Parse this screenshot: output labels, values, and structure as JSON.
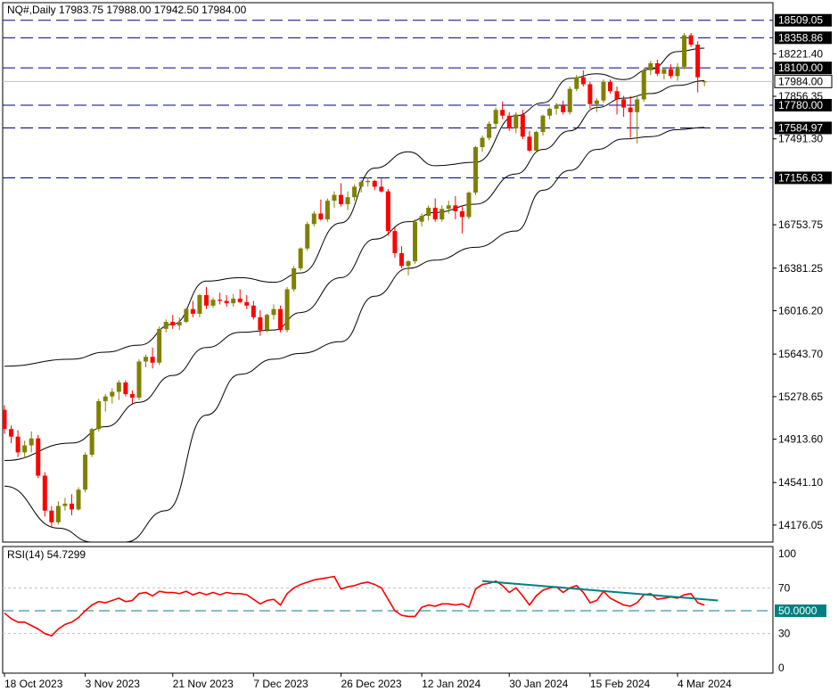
{
  "header": {
    "symbol": "NQ#,Daily",
    "ohlc": "17983.75 17988.00 17942.50 17984.00"
  },
  "rsi_header": {
    "label": "RSI(14) 54.7299"
  },
  "colors": {
    "bull": "#808000",
    "bear": "#ff0000",
    "band": "#000000",
    "level": "#000080",
    "rsi": "#ff0000",
    "trend": "#008080",
    "marker_bg": "#000000",
    "rsi_marker_bg": "#008080"
  },
  "chart_data": [
    {
      "type": "candlestick",
      "title": "NQ#,Daily",
      "x_ticks": [
        "18 Oct 2023",
        "3 Nov 2023",
        "21 Nov 2023",
        "7 Dec 2023",
        "26 Dec 2023",
        "12 Jan 2024",
        "30 Jan 2024",
        "15 Feb 2024",
        "4 Mar 2024"
      ],
      "y_ticks": [
        "18221.40",
        "17856.35",
        "17491.30",
        "16753.75",
        "16381.25",
        "16016.20",
        "15643.70",
        "15278.65",
        "14913.60",
        "14541.10",
        "14176.05"
      ],
      "ylim": [
        14030,
        18660
      ],
      "horizontal_levels": [
        18509.05,
        18358.86,
        18100.0,
        17780.0,
        17584.97,
        17156.63
      ],
      "level_labels": [
        "18509.05",
        "18358.86",
        "18100.00",
        "17780.00",
        "17584.97",
        "17156.63"
      ],
      "current_price": 17984.0,
      "current_price_label": "17984.00",
      "ohlc": [
        [
          15165,
          15205,
          14960,
          15000
        ],
        [
          15000,
          15030,
          14880,
          14935
        ],
        [
          14935,
          14990,
          14760,
          14800
        ],
        [
          14800,
          14900,
          14750,
          14860
        ],
        [
          14860,
          14980,
          14800,
          14920
        ],
        [
          14920,
          14950,
          14580,
          14600
        ],
        [
          14600,
          14630,
          14250,
          14300
        ],
        [
          14300,
          14340,
          14160,
          14200
        ],
        [
          14200,
          14380,
          14180,
          14340
        ],
        [
          14340,
          14410,
          14300,
          14360
        ],
        [
          14360,
          14440,
          14260,
          14310
        ],
        [
          14310,
          14500,
          14300,
          14480
        ],
        [
          14480,
          14800,
          14460,
          14780
        ],
        [
          14780,
          15010,
          14760,
          15000
        ],
        [
          15000,
          15260,
          14980,
          15240
        ],
        [
          15240,
          15300,
          15150,
          15280
        ],
        [
          15280,
          15350,
          15220,
          15320
        ],
        [
          15320,
          15420,
          15250,
          15400
        ],
        [
          15400,
          15420,
          15280,
          15300
        ],
        [
          15300,
          15330,
          15220,
          15270
        ],
        [
          15270,
          15600,
          15250,
          15580
        ],
        [
          15580,
          15640,
          15530,
          15620
        ],
        [
          15620,
          15700,
          15520,
          15570
        ],
        [
          15570,
          15880,
          15550,
          15860
        ],
        [
          15860,
          15940,
          15830,
          15920
        ],
        [
          15920,
          15980,
          15860,
          15890
        ],
        [
          15890,
          15960,
          15850,
          15920
        ],
        [
          15920,
          16040,
          15910,
          16030
        ],
        [
          16030,
          16100,
          15960,
          15990
        ],
        [
          15990,
          16160,
          15960,
          16150
        ],
        [
          16150,
          16220,
          16030,
          16060
        ],
        [
          16060,
          16130,
          16040,
          16110
        ],
        [
          16110,
          16170,
          16070,
          16100
        ],
        [
          16100,
          16150,
          16050,
          16080
        ],
        [
          16080,
          16160,
          16050,
          16120
        ],
        [
          16120,
          16200,
          16080,
          16090
        ],
        [
          16090,
          16150,
          16030,
          16060
        ],
        [
          16060,
          16100,
          15940,
          15960
        ],
        [
          15960,
          16020,
          15800,
          15850
        ],
        [
          15850,
          15990,
          15830,
          15980
        ],
        [
          15980,
          16070,
          15940,
          16030
        ],
        [
          16030,
          16060,
          15830,
          15850
        ],
        [
          15850,
          16220,
          15830,
          16200
        ],
        [
          16200,
          16400,
          16180,
          16380
        ],
        [
          16380,
          16560,
          16360,
          16550
        ],
        [
          16550,
          16780,
          16530,
          16760
        ],
        [
          16760,
          16870,
          16740,
          16850
        ],
        [
          16850,
          16970,
          16790,
          16800
        ],
        [
          16800,
          16980,
          16780,
          16960
        ],
        [
          16960,
          17040,
          16900,
          17010
        ],
        [
          17010,
          17110,
          16910,
          16930
        ],
        [
          16930,
          17040,
          16880,
          16990
        ],
        [
          16990,
          17100,
          16960,
          17080
        ],
        [
          17080,
          17140,
          17030,
          17120
        ],
        [
          17120,
          17160,
          17080,
          17130
        ],
        [
          17130,
          17140,
          17050,
          17080
        ],
        [
          17080,
          17150,
          17030,
          17040
        ],
        [
          17040,
          17060,
          16660,
          16700
        ],
        [
          16700,
          16730,
          16470,
          16510
        ],
        [
          16510,
          16570,
          16380,
          16400
        ],
        [
          16400,
          16450,
          16320,
          16440
        ],
        [
          16440,
          16800,
          16420,
          16780
        ],
        [
          16780,
          16850,
          16740,
          16830
        ],
        [
          16830,
          16920,
          16790,
          16900
        ],
        [
          16900,
          16980,
          16780,
          16800
        ],
        [
          16800,
          16920,
          16780,
          16890
        ],
        [
          16890,
          16960,
          16850,
          16920
        ],
        [
          16920,
          17000,
          16800,
          16870
        ],
        [
          16870,
          16920,
          16680,
          16820
        ],
        [
          16820,
          17040,
          16800,
          17030
        ],
        [
          17030,
          17430,
          17010,
          17420
        ],
        [
          17420,
          17520,
          17380,
          17500
        ],
        [
          17500,
          17640,
          17480,
          17620
        ],
        [
          17620,
          17760,
          17580,
          17740
        ],
        [
          17740,
          17810,
          17660,
          17690
        ],
        [
          17690,
          17720,
          17560,
          17580
        ],
        [
          17580,
          17720,
          17540,
          17700
        ],
        [
          17700,
          17740,
          17490,
          17510
        ],
        [
          17510,
          17560,
          17380,
          17390
        ],
        [
          17390,
          17560,
          17370,
          17550
        ],
        [
          17550,
          17700,
          17520,
          17690
        ],
        [
          17690,
          17760,
          17660,
          17750
        ],
        [
          17750,
          17800,
          17700,
          17780
        ],
        [
          17780,
          17820,
          17700,
          17720
        ],
        [
          17720,
          17940,
          17700,
          17920
        ],
        [
          17920,
          18040,
          17900,
          18020
        ],
        [
          18020,
          18080,
          17940,
          17960
        ],
        [
          17960,
          17980,
          17750,
          17790
        ],
        [
          17790,
          17840,
          17720,
          17820
        ],
        [
          17820,
          18000,
          17800,
          17980
        ],
        [
          17980,
          18000,
          17880,
          17900
        ],
        [
          17900,
          17940,
          17700,
          17830
        ],
        [
          17830,
          17860,
          17680,
          17760
        ],
        [
          17760,
          17860,
          17500,
          17720
        ],
        [
          17720,
          17860,
          17450,
          17830
        ],
        [
          17830,
          18100,
          17810,
          18080
        ],
        [
          18080,
          18160,
          18040,
          18140
        ],
        [
          18140,
          18170,
          18030,
          18050
        ],
        [
          18050,
          18100,
          18000,
          18090
        ],
        [
          18090,
          18130,
          18010,
          18030
        ],
        [
          18030,
          18140,
          17990,
          18110
        ],
        [
          18110,
          18400,
          18090,
          18380
        ],
        [
          18380,
          18400,
          18280,
          18300
        ],
        [
          18300,
          18330,
          17890,
          18020
        ],
        [
          17984,
          17988,
          17943,
          17984
        ]
      ],
      "bollinger_upper": [
        [
          0,
          15540
        ],
        [
          10,
          15600
        ],
        [
          15,
          15660
        ],
        [
          20,
          15720
        ],
        [
          25,
          15900
        ],
        [
          30,
          16270
        ],
        [
          35,
          16300
        ],
        [
          40,
          16260
        ],
        [
          44,
          16340
        ],
        [
          50,
          16770
        ],
        [
          55,
          17240
        ],
        [
          60,
          17380
        ],
        [
          64,
          17260
        ],
        [
          70,
          17290
        ],
        [
          76,
          17690
        ],
        [
          80,
          17800
        ],
        [
          84,
          18010
        ],
        [
          88,
          18050
        ],
        [
          92,
          18000
        ],
        [
          96,
          18090
        ],
        [
          100,
          18240
        ],
        [
          104,
          18270
        ]
      ],
      "bollinger_middle": [
        [
          0,
          14730
        ],
        [
          10,
          14880
        ],
        [
          15,
          15020
        ],
        [
          20,
          15230
        ],
        [
          25,
          15460
        ],
        [
          30,
          15700
        ],
        [
          35,
          15830
        ],
        [
          40,
          15850
        ],
        [
          44,
          16000
        ],
        [
          50,
          16300
        ],
        [
          55,
          16630
        ],
        [
          60,
          16780
        ],
        [
          64,
          16860
        ],
        [
          70,
          16930
        ],
        [
          76,
          17190
        ],
        [
          80,
          17400
        ],
        [
          84,
          17560
        ],
        [
          88,
          17760
        ],
        [
          92,
          17840
        ],
        [
          96,
          17880
        ],
        [
          100,
          17950
        ],
        [
          104,
          17990
        ]
      ],
      "bollinger_lower": [
        [
          0,
          14510
        ],
        [
          8,
          14150
        ],
        [
          13,
          14030
        ],
        [
          18,
          14030
        ],
        [
          24,
          14300
        ],
        [
          30,
          15120
        ],
        [
          35,
          15470
        ],
        [
          40,
          15600
        ],
        [
          44,
          15650
        ],
        [
          50,
          15750
        ],
        [
          55,
          16140
        ],
        [
          60,
          16380
        ],
        [
          64,
          16450
        ],
        [
          70,
          16560
        ],
        [
          76,
          16700
        ],
        [
          80,
          17050
        ],
        [
          84,
          17220
        ],
        [
          88,
          17400
        ],
        [
          92,
          17490
        ],
        [
          96,
          17510
        ],
        [
          100,
          17570
        ],
        [
          104,
          17590
        ]
      ]
    },
    {
      "type": "line",
      "title": "RSI(14) 54.7299",
      "y_ticks": [
        "100",
        "70",
        "50",
        "30",
        "0"
      ],
      "ylim": [
        0,
        100
      ],
      "reference_level": 50,
      "reference_label": "50.0000",
      "values": [
        48,
        43,
        40,
        40,
        37,
        34,
        30,
        28,
        34,
        38,
        40,
        44,
        50,
        55,
        58,
        57,
        59,
        61,
        58,
        59,
        65,
        66,
        63,
        67,
        66,
        66,
        65,
        67,
        64,
        66,
        64,
        66,
        64,
        66,
        65,
        65,
        64,
        60,
        56,
        59,
        60,
        55,
        65,
        70,
        73,
        75,
        77,
        78,
        79,
        80,
        69,
        71,
        72,
        74,
        75,
        73,
        70,
        60,
        50,
        46,
        45,
        45,
        53,
        55,
        54,
        56,
        56,
        55,
        56,
        53,
        69,
        73,
        74,
        76,
        72,
        66,
        70,
        63,
        55,
        63,
        68,
        70,
        71,
        66,
        70,
        72,
        66,
        57,
        59,
        67,
        61,
        58,
        55,
        54,
        57,
        64,
        65,
        60,
        61,
        62,
        61,
        64,
        65,
        57,
        55
      ],
      "trendline": [
        [
          71,
          76
        ],
        [
          106,
          59
        ]
      ]
    }
  ]
}
